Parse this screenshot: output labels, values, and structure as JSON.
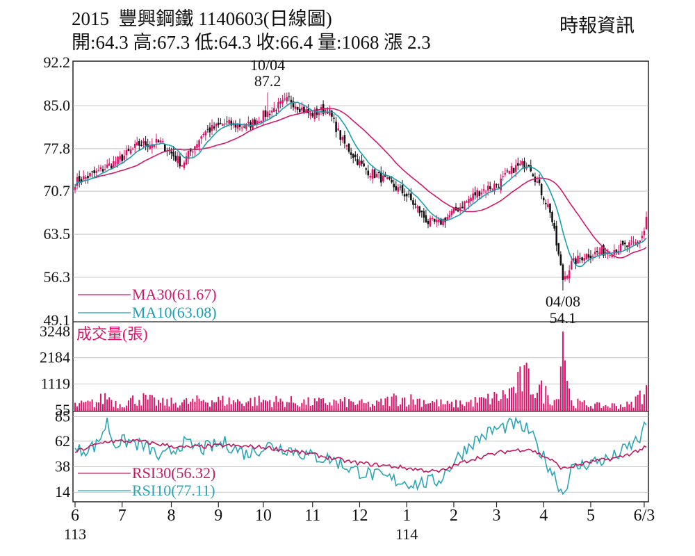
{
  "header": {
    "title": "2015  豐興鋼鐵 1140603(日線圖)",
    "ohlc": "開:64.3 高:67.3 低:64.3 收:66.4 量:1068 漲 2.3",
    "source": "時報資訊"
  },
  "colors": {
    "up": "#e0116a",
    "down": "#111111",
    "ma30": "#d0186a",
    "ma10": "#1a9fb0",
    "volume": "#e0116a",
    "rsi30": "#c0185f",
    "rsi10": "#2aa5b5",
    "grid": "#b8b8b8"
  },
  "chart_data": [
    {
      "type": "candlestick",
      "name": "price",
      "y_ticks": [
        "92.2",
        "85.0",
        "77.8",
        "70.7",
        "63.5",
        "56.3",
        "49.1"
      ],
      "ylim": [
        49.1,
        92.2
      ],
      "x_tick_labels": [
        "6",
        "7",
        "8",
        "9",
        "10",
        "11",
        "12",
        "1",
        "2",
        "3",
        "4",
        "5",
        "6/3"
      ],
      "x_sub_labels": [
        {
          "under": "6",
          "text": "113"
        },
        {
          "under": "1",
          "text": "114"
        }
      ],
      "series_labels": {
        "ma30": "MA30(61.67)",
        "ma10": "MA10(63.08)"
      },
      "annotations": [
        {
          "date": "10/04",
          "value": "87.2",
          "kind": "high"
        },
        {
          "date": "04/08",
          "value": "54.1",
          "kind": "low"
        }
      ],
      "close_keypoints": [
        [
          0,
          72.2
        ],
        [
          10,
          73.8
        ],
        [
          20,
          75.8
        ],
        [
          30,
          78.5
        ],
        [
          40,
          78.8
        ],
        [
          50,
          75.2
        ],
        [
          60,
          80.5
        ],
        [
          70,
          82.0
        ],
        [
          80,
          81.5
        ],
        [
          90,
          83.8
        ],
        [
          100,
          86.0
        ],
        [
          110,
          83.5
        ],
        [
          118,
          84.5
        ],
        [
          125,
          79.0
        ],
        [
          135,
          74.5
        ],
        [
          145,
          72.5
        ],
        [
          155,
          70.0
        ],
        [
          165,
          65.5
        ],
        [
          170,
          65.3
        ],
        [
          178,
          67.5
        ],
        [
          188,
          70.5
        ],
        [
          198,
          72.0
        ],
        [
          205,
          74.5
        ],
        [
          212,
          75.5
        ],
        [
          218,
          70.5
        ],
        [
          222,
          67.5
        ],
        [
          228,
          56.0
        ],
        [
          232,
          58.5
        ],
        [
          238,
          60.0
        ],
        [
          250,
          60.8
        ],
        [
          258,
          61.5
        ],
        [
          263,
          62.0
        ],
        [
          266,
          64.1
        ],
        [
          267,
          66.4
        ]
      ],
      "last": {
        "open": 64.3,
        "high": 67.3,
        "low": 64.3,
        "close": 66.4
      }
    },
    {
      "type": "bar",
      "name": "volume",
      "label": "成交量(張)",
      "y_ticks": [
        "3248",
        "2184",
        "1119",
        "55"
      ],
      "ylim": [
        0,
        3248
      ],
      "level_keypoints": [
        [
          0,
          280
        ],
        [
          10,
          400
        ],
        [
          15,
          700
        ],
        [
          20,
          320
        ],
        [
          30,
          600
        ],
        [
          40,
          380
        ],
        [
          55,
          420
        ],
        [
          60,
          520
        ],
        [
          75,
          450
        ],
        [
          90,
          480
        ],
        [
          110,
          400
        ],
        [
          125,
          420
        ],
        [
          140,
          300
        ],
        [
          150,
          600
        ],
        [
          165,
          460
        ],
        [
          175,
          300
        ],
        [
          190,
          480
        ],
        [
          200,
          700
        ],
        [
          205,
          1000
        ],
        [
          210,
          1500
        ],
        [
          215,
          1100
        ],
        [
          220,
          800
        ],
        [
          225,
          500
        ],
        [
          228,
          3248
        ],
        [
          232,
          400
        ],
        [
          245,
          250
        ],
        [
          260,
          300
        ],
        [
          267,
          1068
        ]
      ]
    },
    {
      "type": "line",
      "name": "rsi",
      "y_ticks": [
        "85",
        "62",
        "38",
        "14"
      ],
      "ylim": [
        5,
        90
      ],
      "series_labels": {
        "rsi30": "RSI30(56.32)",
        "rsi10": "RSI10(77.11)"
      },
      "rsi10_keypoints": [
        [
          0,
          52
        ],
        [
          10,
          58
        ],
        [
          15,
          80
        ],
        [
          18,
          60
        ],
        [
          25,
          62
        ],
        [
          35,
          55
        ],
        [
          40,
          45
        ],
        [
          50,
          60
        ],
        [
          60,
          55
        ],
        [
          70,
          60
        ],
        [
          80,
          50
        ],
        [
          90,
          58
        ],
        [
          100,
          55
        ],
        [
          110,
          48
        ],
        [
          120,
          45
        ],
        [
          130,
          35
        ],
        [
          140,
          30
        ],
        [
          150,
          25
        ],
        [
          160,
          22
        ],
        [
          170,
          25
        ],
        [
          178,
          45
        ],
        [
          185,
          60
        ],
        [
          195,
          72
        ],
        [
          205,
          78
        ],
        [
          212,
          72
        ],
        [
          218,
          50
        ],
        [
          224,
          30
        ],
        [
          228,
          12
        ],
        [
          232,
          35
        ],
        [
          240,
          42
        ],
        [
          250,
          45
        ],
        [
          258,
          55
        ],
        [
          264,
          65
        ],
        [
          267,
          77.11
        ]
      ],
      "rsi30_keypoints": [
        [
          0,
          52
        ],
        [
          15,
          62
        ],
        [
          30,
          62
        ],
        [
          50,
          56
        ],
        [
          70,
          58
        ],
        [
          90,
          56
        ],
        [
          110,
          50
        ],
        [
          130,
          42
        ],
        [
          150,
          38
        ],
        [
          170,
          33
        ],
        [
          185,
          45
        ],
        [
          200,
          52
        ],
        [
          212,
          55
        ],
        [
          222,
          45
        ],
        [
          228,
          36
        ],
        [
          240,
          42
        ],
        [
          255,
          47
        ],
        [
          267,
          56.32
        ]
      ]
    }
  ]
}
